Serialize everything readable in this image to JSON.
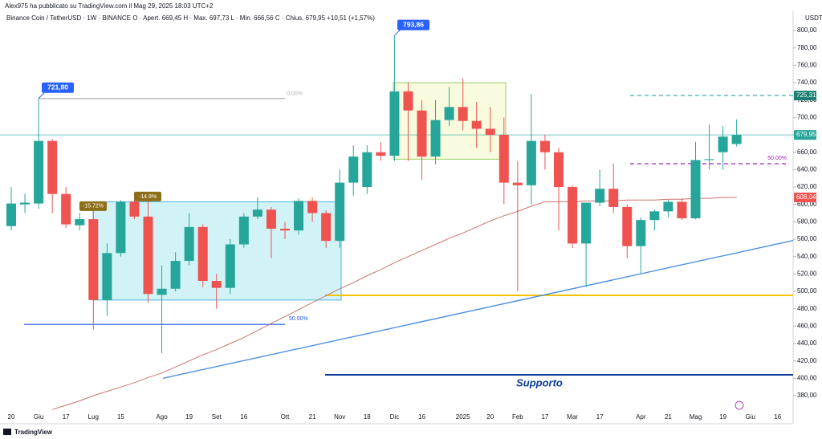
{
  "header": {
    "author_line": "Alex975 ha pubblicato su TradingView.com il Mag 29, 2025 18:03 UTC+2",
    "symbol_line": "Binance Coin / TetherUSD · 1W · BINANCE  O · Apert. 669,45  H · Max. 697,73  L · Min. 666,56  C · Chius. 679,95  +10,51 (+1,57%)",
    "footer": "TradingView"
  },
  "chart_data": {
    "type": "candlestick",
    "currency": "USDT",
    "categories": [
      "20",
      null,
      "Giu",
      null,
      "17",
      null,
      "Lug",
      null,
      "15",
      null,
      null,
      "Ago",
      null,
      "19",
      null,
      "Set",
      null,
      "16",
      null,
      null,
      "Ott",
      null,
      "21",
      null,
      "Nov",
      null,
      "18",
      null,
      "Dic",
      null,
      "16",
      null,
      null,
      "2025",
      null,
      "20",
      null,
      "Feb",
      null,
      "17",
      null,
      "Mar",
      null,
      "17",
      null,
      null,
      "Apr",
      null,
      "21",
      null,
      "Mag",
      null,
      "19",
      null,
      "Giu",
      null,
      "16"
    ],
    "open": [
      575,
      600,
      601,
      673,
      612,
      576,
      583,
      490,
      544,
      603,
      586,
      496,
      503,
      535,
      574,
      512,
      504,
      554,
      586,
      594,
      572,
      570,
      604,
      590,
      558,
      625,
      620,
      660,
      656,
      730,
      708,
      655,
      697,
      712,
      696,
      687,
      680,
      625,
      622,
      673,
      660,
      620,
      555,
      602,
      618,
      597,
      552,
      582,
      592,
      603,
      584,
      651,
      660,
      669.45,
      null,
      null,
      null
    ],
    "high": [
      620,
      612,
      721.8,
      675,
      620,
      590,
      600,
      555,
      605,
      605,
      605,
      530,
      545,
      590,
      577,
      520,
      560,
      590,
      608,
      597,
      580,
      607,
      608,
      593,
      640,
      668,
      668,
      672,
      793.86,
      740,
      720,
      720,
      735,
      745,
      718,
      712,
      700,
      650,
      727,
      680,
      665,
      622,
      602,
      640,
      647,
      600,
      585,
      594,
      605,
      607,
      672,
      692,
      690,
      697.73,
      null,
      null,
      null
    ],
    "low": [
      570,
      590,
      595,
      590,
      573,
      570,
      456,
      472,
      540,
      583,
      487,
      429,
      500,
      530,
      505,
      480,
      497,
      550,
      583,
      538,
      560,
      565,
      580,
      550,
      550,
      610,
      612,
      650,
      650,
      650,
      628,
      646,
      690,
      685,
      665,
      660,
      600,
      500,
      600,
      640,
      570,
      550,
      505,
      598,
      590,
      538,
      521,
      570,
      585,
      582,
      583,
      640,
      640,
      666.56,
      null,
      null,
      null
    ],
    "close": [
      601,
      602,
      673,
      612,
      577,
      583,
      490,
      544,
      603,
      586,
      497,
      503,
      535,
      574,
      512,
      504,
      554,
      586,
      594,
      572,
      570,
      604,
      590,
      558,
      625,
      655,
      660,
      656,
      730,
      708,
      655,
      697,
      712,
      696,
      687,
      680,
      625,
      622,
      673,
      660,
      620,
      555,
      602,
      618,
      597,
      552,
      582,
      592,
      603,
      584,
      651,
      652,
      678,
      679.95,
      null,
      null,
      null
    ],
    "up_color": "#26a69a",
    "down_color": "#ef5350",
    "moving_average": {
      "color": "#c9736f",
      "values": [
        null,
        null,
        null,
        364,
        369,
        374,
        380,
        385,
        390,
        395,
        401,
        406,
        413,
        420,
        427,
        433,
        440,
        447,
        455,
        463,
        471,
        479,
        487,
        495,
        503,
        510,
        518,
        525,
        533,
        540,
        547,
        554,
        561,
        567,
        574,
        581,
        587,
        592,
        598,
        603,
        603,
        603,
        604,
        604,
        604,
        605,
        605,
        605,
        606,
        606,
        607,
        607,
        608,
        608.04,
        null,
        null,
        null
      ]
    },
    "ylim": [
      350,
      828
    ],
    "yticks": [
      {
        "value": 380,
        "label": "380,00"
      },
      {
        "value": 400,
        "label": "400,00"
      },
      {
        "value": 420,
        "label": "420,00"
      },
      {
        "value": 440,
        "label": "440,00"
      },
      {
        "value": 460,
        "label": "460,00"
      },
      {
        "value": 480,
        "label": "480,00"
      },
      {
        "value": 500,
        "label": "500,00"
      },
      {
        "value": 520,
        "label": "520,00"
      },
      {
        "value": 540,
        "label": "540,00"
      },
      {
        "value": 560,
        "label": "560,00"
      },
      {
        "value": 580,
        "label": "580,00"
      },
      {
        "value": 600,
        "label": "600,00"
      },
      {
        "value": 620,
        "label": "620,00"
      },
      {
        "value": 640,
        "label": "640,00"
      },
      {
        "value": 660,
        "label": "660,00"
      },
      {
        "value": 680,
        "label": "680,00"
      },
      {
        "value": 700,
        "label": "700,00"
      },
      {
        "value": 720,
        "label": "720,00"
      },
      {
        "value": 740,
        "label": "740,00"
      },
      {
        "value": 760,
        "label": "760,00"
      },
      {
        "value": 780,
        "label": "780,00"
      },
      {
        "value": 800,
        "label": "800,00"
      }
    ],
    "boxes": [
      {
        "top": 603,
        "bottom": 490,
        "color": "#b2ebf2",
        "edge": "#4fb3e0"
      },
      {
        "top": 740,
        "bottom": 652,
        "color": "#f4f9c6",
        "edge": "#9ccc65"
      }
    ],
    "levels": [
      {
        "value": 721.8,
        "label": "0.00%",
        "color": "#b2b5be",
        "dash": false
      },
      {
        "value": 646.8,
        "label": "50.00%",
        "color": "#9c27b0",
        "dash": true
      },
      {
        "value": 462,
        "label": "50.00%",
        "color": "#1e53e5",
        "dash": false
      },
      {
        "value": 495.4,
        "color": "#f5c000",
        "dash": false
      },
      {
        "value": 404,
        "label": "Supporto",
        "color": "#0d3a9c",
        "dash": false
      },
      {
        "value": 725.31,
        "color": "#26a69a",
        "dash": true
      },
      {
        "value": 679.95,
        "color": "#26a69a",
        "dash": false
      }
    ],
    "trendline": {
      "start": 400,
      "end": 558.5,
      "color": "#4a8fe0"
    },
    "callouts": [
      {
        "value": 721.8,
        "label": "721,80"
      },
      {
        "value": 793.86,
        "label": "793,86"
      }
    ],
    "drop_labels": [
      {
        "value": 598,
        "label": "-15.72%"
      },
      {
        "value": 609,
        "label": "-14.9%"
      }
    ],
    "price_labels": [
      {
        "value": 725.31,
        "label": "725,31",
        "color": "#1b7f74"
      },
      {
        "value": 679.95,
        "label": "679,95",
        "color": "#26a69a"
      },
      {
        "value": 608.04,
        "label": "608,04",
        "color": "#ef5350"
      }
    ]
  }
}
